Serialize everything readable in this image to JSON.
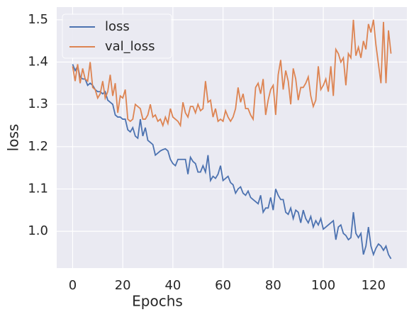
{
  "chart_data": {
    "type": "line",
    "xlabel": "Epochs",
    "ylabel": "loss",
    "x": [
      0,
      1,
      2,
      3,
      4,
      5,
      6,
      7,
      8,
      9,
      10,
      11,
      12,
      13,
      14,
      15,
      16,
      17,
      18,
      19,
      20,
      21,
      22,
      23,
      24,
      25,
      26,
      27,
      28,
      29,
      30,
      31,
      32,
      33,
      34,
      35,
      36,
      37,
      38,
      39,
      40,
      41,
      42,
      43,
      44,
      45,
      46,
      47,
      48,
      49,
      50,
      51,
      52,
      53,
      54,
      55,
      56,
      57,
      58,
      59,
      60,
      61,
      62,
      63,
      64,
      65,
      66,
      67,
      68,
      69,
      70,
      71,
      72,
      73,
      74,
      75,
      76,
      77,
      78,
      79,
      80,
      81,
      82,
      83,
      84,
      85,
      86,
      87,
      88,
      89,
      90,
      91,
      92,
      93,
      94,
      95,
      96,
      97,
      98,
      99,
      100,
      101,
      102,
      103,
      104,
      105,
      106,
      107,
      108,
      109,
      110,
      111,
      112,
      113,
      114,
      115,
      116,
      117,
      118,
      119,
      120,
      121,
      122,
      123,
      124,
      125,
      126,
      127
    ],
    "series": [
      {
        "name": "loss",
        "color": "#4c72b0",
        "values": [
          1.395,
          1.38,
          1.39,
          1.365,
          1.36,
          1.36,
          1.345,
          1.35,
          1.345,
          1.335,
          1.33,
          1.33,
          1.325,
          1.33,
          1.31,
          1.305,
          1.3,
          1.275,
          1.27,
          1.27,
          1.265,
          1.265,
          1.24,
          1.235,
          1.245,
          1.225,
          1.22,
          1.265,
          1.225,
          1.245,
          1.215,
          1.21,
          1.205,
          1.18,
          1.185,
          1.19,
          1.193,
          1.195,
          1.19,
          1.17,
          1.16,
          1.155,
          1.17,
          1.17,
          1.17,
          1.17,
          1.135,
          1.175,
          1.165,
          1.16,
          1.14,
          1.14,
          1.155,
          1.14,
          1.18,
          1.12,
          1.13,
          1.125,
          1.135,
          1.155,
          1.12,
          1.125,
          1.13,
          1.115,
          1.11,
          1.09,
          1.1,
          1.105,
          1.09,
          1.085,
          1.095,
          1.08,
          1.075,
          1.07,
          1.065,
          1.085,
          1.045,
          1.055,
          1.055,
          1.08,
          1.05,
          1.1,
          1.085,
          1.075,
          1.075,
          1.045,
          1.04,
          1.055,
          1.03,
          1.05,
          1.045,
          1.02,
          1.05,
          1.03,
          1.02,
          1.035,
          1.01,
          1.025,
          1.015,
          1.03,
          1.005,
          1.01,
          1.015,
          1.02,
          1.025,
          0.98,
          1.01,
          1.015,
          0.995,
          0.99,
          0.98,
          0.985,
          1.045,
          0.995,
          0.985,
          0.995,
          0.945,
          0.965,
          1.01,
          0.965,
          0.945,
          0.96,
          0.97,
          0.965,
          0.955,
          0.965,
          0.945,
          0.935
        ]
      },
      {
        "name": "val_loss",
        "color": "#dd8452",
        "values": [
          1.39,
          1.355,
          1.395,
          1.35,
          1.385,
          1.36,
          1.355,
          1.4,
          1.34,
          1.335,
          1.315,
          1.325,
          1.355,
          1.315,
          1.33,
          1.37,
          1.32,
          1.35,
          1.28,
          1.32,
          1.315,
          1.335,
          1.265,
          1.26,
          1.265,
          1.3,
          1.295,
          1.29,
          1.265,
          1.265,
          1.275,
          1.3,
          1.27,
          1.275,
          1.26,
          1.265,
          1.25,
          1.27,
          1.255,
          1.29,
          1.27,
          1.265,
          1.26,
          1.25,
          1.305,
          1.28,
          1.27,
          1.295,
          1.295,
          1.28,
          1.3,
          1.285,
          1.29,
          1.355,
          1.305,
          1.31,
          1.27,
          1.29,
          1.26,
          1.265,
          1.26,
          1.285,
          1.27,
          1.26,
          1.27,
          1.29,
          1.34,
          1.305,
          1.325,
          1.29,
          1.29,
          1.275,
          1.265,
          1.34,
          1.35,
          1.325,
          1.36,
          1.275,
          1.31,
          1.335,
          1.345,
          1.275,
          1.37,
          1.405,
          1.335,
          1.38,
          1.355,
          1.3,
          1.385,
          1.36,
          1.31,
          1.34,
          1.34,
          1.35,
          1.365,
          1.32,
          1.295,
          1.31,
          1.39,
          1.335,
          1.345,
          1.36,
          1.33,
          1.39,
          1.32,
          1.43,
          1.42,
          1.4,
          1.41,
          1.345,
          1.42,
          1.41,
          1.5,
          1.415,
          1.435,
          1.41,
          1.45,
          1.43,
          1.49,
          1.47,
          1.5,
          1.44,
          1.395,
          1.35,
          1.495,
          1.35,
          1.475,
          1.42
        ]
      }
    ],
    "xlim": [
      -6.35,
      133.35
    ],
    "xticks": [
      0,
      20,
      40,
      60,
      80,
      100,
      120
    ],
    "ylim": [
      0.913,
      1.53
    ],
    "yticks": [
      {
        "value": 1,
        "label": "1.0"
      },
      1.1,
      1.2,
      1.3,
      1.4,
      1.5
    ],
    "grid": true,
    "legend": "upper left"
  }
}
